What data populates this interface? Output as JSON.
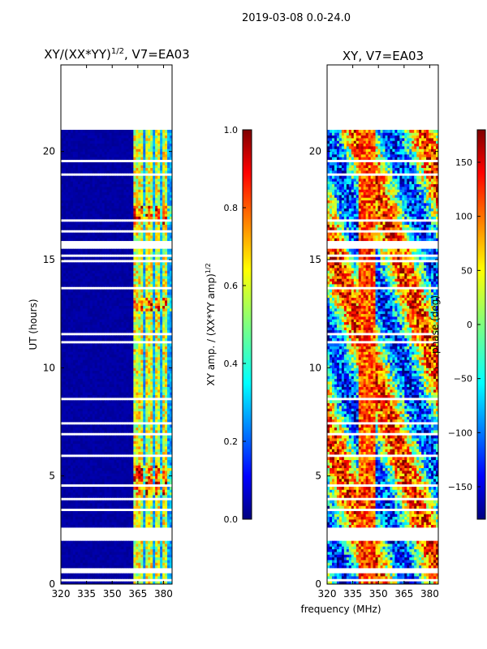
{
  "suptitle": "2019-03-08 0.0-24.0",
  "xlabel_shared": "frequency (MHz)",
  "colors": {
    "jet": [
      "#00007f",
      "#0000ff",
      "#007fff",
      "#00ffff",
      "#7fff7f",
      "#ffff00",
      "#ff7f00",
      "#ff0000",
      "#7f0000"
    ],
    "background": "#ffffff",
    "gap": "#ffffff"
  },
  "chart_data": [
    {
      "type": "heatmap",
      "title_main": "XY/(XX*YY)",
      "title_exp": "1/2",
      "title_rest": ", V7=EA03",
      "xlabel": "",
      "ylabel": "UT (hours)",
      "xlim": [
        320,
        385
      ],
      "ylim": [
        0,
        24
      ],
      "xticks": [
        320,
        335,
        350,
        365,
        380
      ],
      "yticks": [
        0,
        5,
        10,
        15,
        20
      ],
      "data_time_range": [
        0,
        21
      ],
      "colorbar": {
        "label_main": "XY amp. / (XX*YY amp)",
        "label_exp": "1/2",
        "range": [
          0.0,
          1.0
        ],
        "ticks": [
          "0.0",
          "0.2",
          "0.4",
          "0.6",
          "0.8",
          "1.0"
        ]
      }
    },
    {
      "type": "heatmap",
      "title": "XY, V7=EA03",
      "xlabel": "",
      "ylabel": "",
      "xlim": [
        320,
        385
      ],
      "ylim": [
        0,
        24
      ],
      "xticks": [
        320,
        335,
        350,
        365,
        380
      ],
      "yticks": [
        0,
        5,
        10,
        15,
        20
      ],
      "data_time_range": [
        0,
        21
      ],
      "colorbar": {
        "label": "phase (deg)",
        "range": [
          -180,
          180
        ],
        "ticks": [
          "−150",
          "−100",
          "−50",
          "0",
          "50",
          "100",
          "150"
        ]
      }
    }
  ],
  "gaps_hours": [
    [
      2.0,
      2.6
    ],
    [
      0.45,
      0.7
    ],
    [
      0.1,
      0.2
    ],
    [
      3.3,
      3.4
    ],
    [
      3.8,
      3.95
    ],
    [
      4.5,
      4.55
    ],
    [
      5.8,
      5.9
    ],
    [
      6.8,
      6.9
    ],
    [
      7.3,
      7.4
    ],
    [
      7.9,
      8.0
    ],
    [
      8.5,
      8.6
    ],
    [
      11.1,
      11.2
    ],
    [
      11.5,
      11.6
    ],
    [
      11.9,
      12.0
    ],
    [
      12.4,
      12.5
    ],
    [
      13.6,
      13.7
    ],
    [
      14.4,
      14.5
    ],
    [
      14.8,
      14.9
    ],
    [
      15.1,
      15.2
    ],
    [
      15.4,
      15.8
    ],
    [
      16.2,
      16.3
    ],
    [
      16.7,
      16.8
    ],
    [
      17.4,
      17.5
    ],
    [
      17.9,
      18.0
    ],
    [
      18.8,
      18.9
    ],
    [
      19.5,
      19.6
    ]
  ]
}
